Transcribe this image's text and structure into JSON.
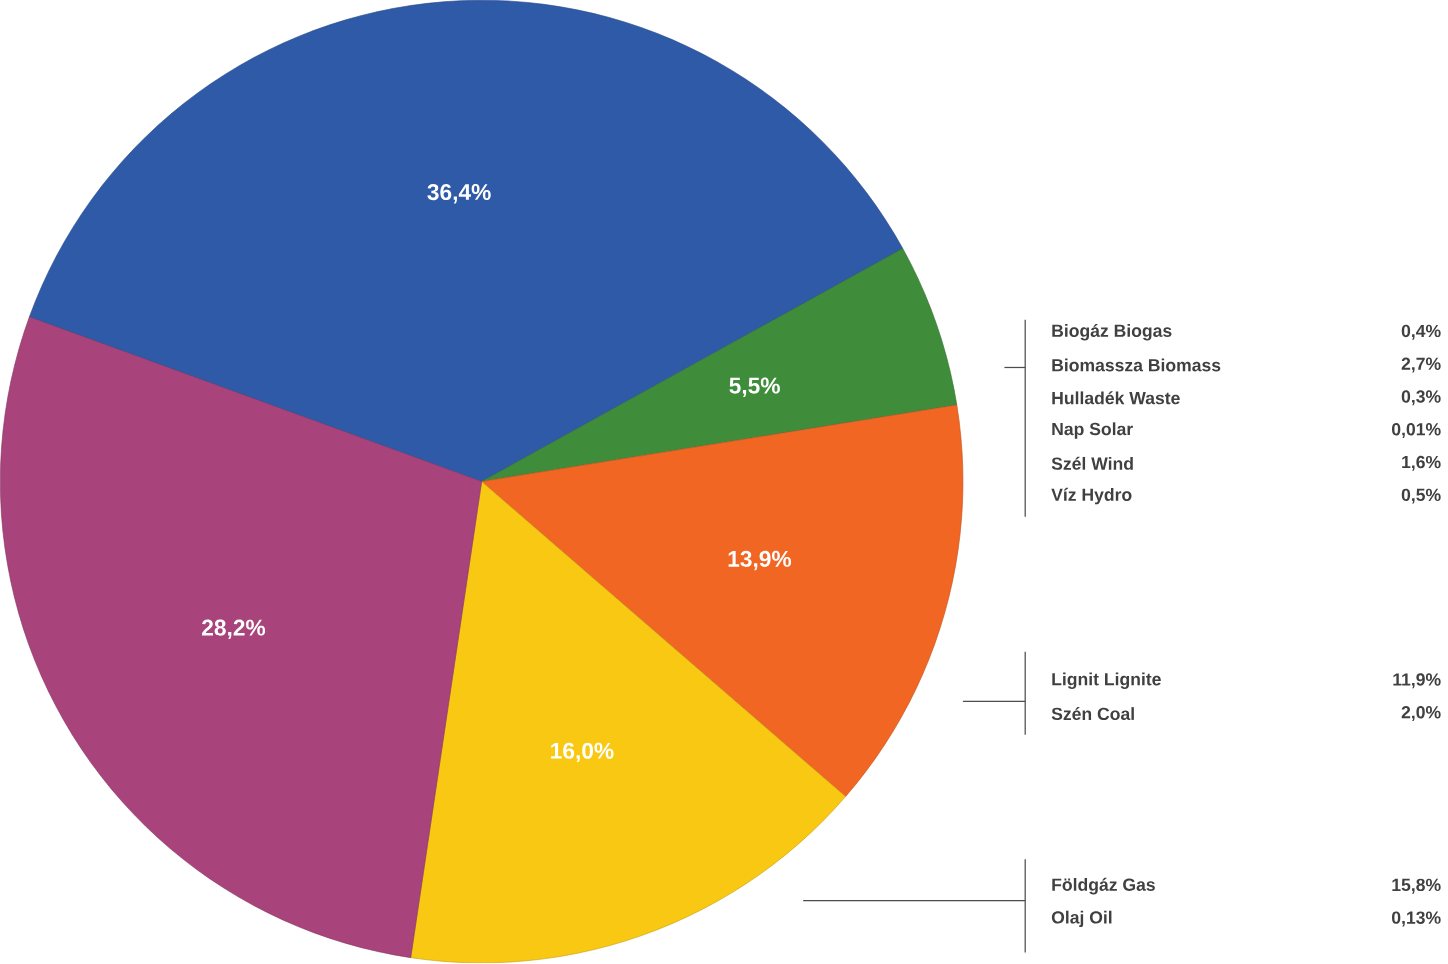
{
  "chart_data": {
    "type": "pie",
    "categories": [
      null,
      null,
      null,
      null,
      null
    ],
    "values": [
      36.4,
      5.5,
      13.9,
      16.0,
      28.2
    ],
    "value_labels": [
      "36,4%",
      "5,5%",
      "13,9%",
      "16,0%",
      "28,2%"
    ],
    "colors": [
      "#2f5aa8",
      "#3f8d3b",
      "#f26624",
      "#f8c812",
      "#a8437b"
    ],
    "annotations": [
      "Biogáz Biogas",
      "0,4%",
      "Biomassza Biomass",
      "2,7%",
      "Hulladék Waste",
      "0,3%",
      "Nap Solar",
      "0,01%",
      "Szél Wind",
      "1,6%",
      "Víz Hydro",
      "0,5%",
      "Lignit Lignite",
      "11,9%",
      "Szén Coal",
      "2,0%",
      "Földgáz Gas",
      "15,8%",
      "Olaj Oil",
      "0,13%"
    ]
  }
}
